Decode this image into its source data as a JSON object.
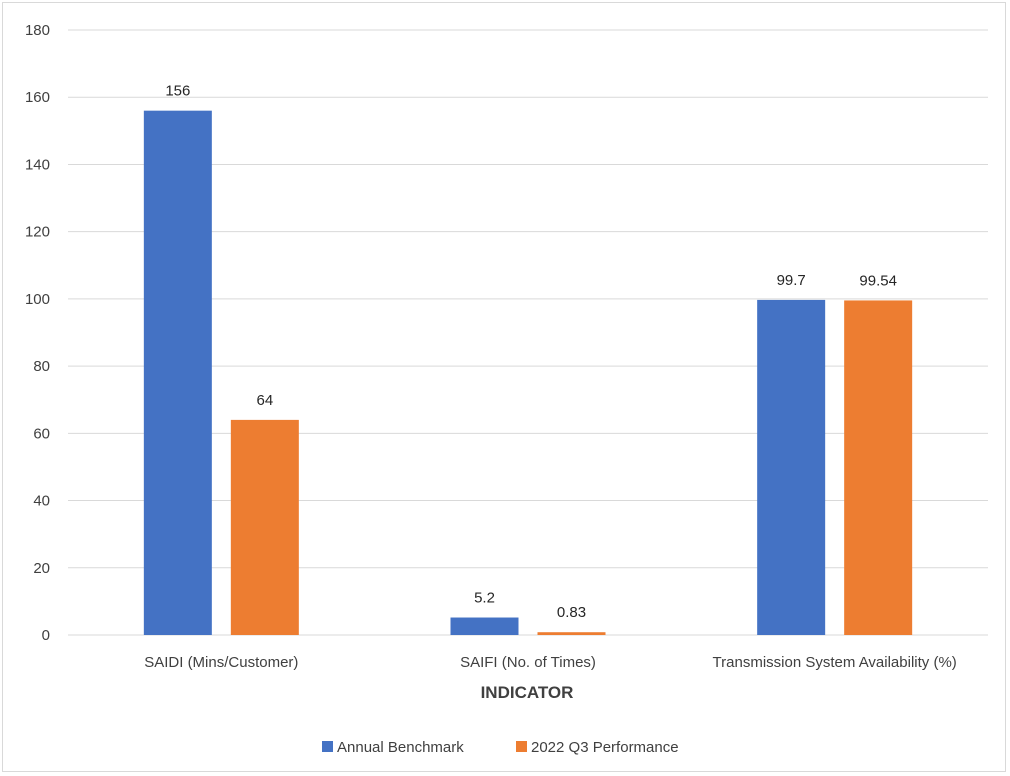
{
  "chart_data": {
    "type": "bar",
    "title": "",
    "xlabel": "INDICATOR",
    "ylabel": "",
    "categories": [
      "SAIDI (Mins/Customer)",
      "SAIFI (No. of Times)",
      "Transmission System Availability (%)"
    ],
    "series": [
      {
        "name": "Annual Benchmark",
        "color": "#4472C4",
        "values": [
          156,
          5.2,
          99.7
        ],
        "labels": [
          "156",
          "5.2",
          "99.7"
        ]
      },
      {
        "name": "2022 Q3 Performance",
        "color": "#ED7D31",
        "values": [
          64,
          0.83,
          99.54
        ],
        "labels": [
          "64",
          "0.83",
          "99.54"
        ]
      }
    ],
    "ylim": [
      0,
      180
    ],
    "yticks": [
      0,
      20,
      40,
      60,
      80,
      100,
      120,
      140,
      160,
      180
    ],
    "grid": true,
    "legend": "bottom-center"
  }
}
